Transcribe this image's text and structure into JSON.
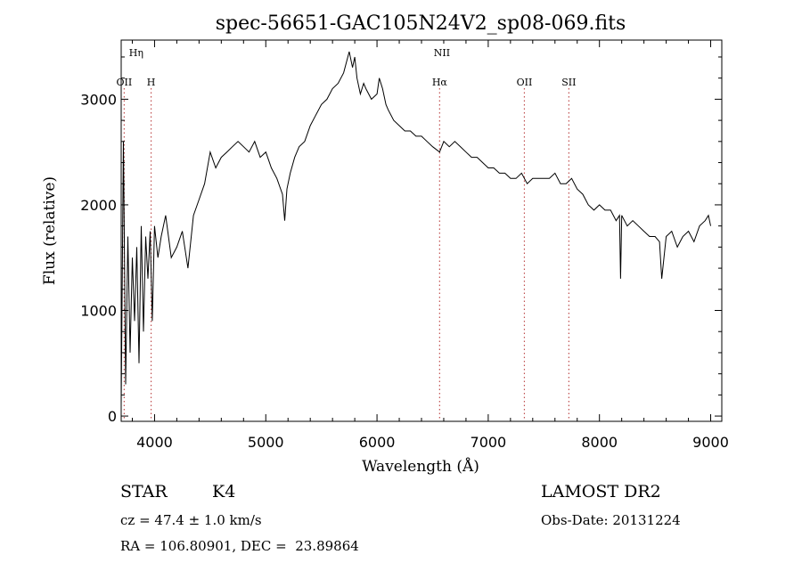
{
  "chart_data": {
    "type": "line",
    "title": "spec-56651-GAC105N24V2_sp08-069.fits",
    "xlabel": "Wavelength (Å)",
    "ylabel": "Flux (relative)",
    "xlim": [
      3700,
      9100
    ],
    "ylim": [
      -50,
      3560
    ],
    "xticks": [
      4000,
      5000,
      6000,
      7000,
      8000,
      9000
    ],
    "yticks": [
      0,
      1000,
      2000,
      3000
    ],
    "grid": false,
    "line_color": "#000000",
    "marker_color": "#c05050",
    "lines": [
      {
        "label": "Hη",
        "wavelength": 3835,
        "row": "top",
        "show_rule": false
      },
      {
        "label": "OII",
        "wavelength": 3727,
        "row": "mid",
        "show_rule": true
      },
      {
        "label": "H",
        "wavelength": 3969,
        "row": "mid",
        "show_rule": true
      },
      {
        "label": "NII",
        "wavelength": 6584,
        "row": "top",
        "show_rule": false
      },
      {
        "label": "Hα",
        "wavelength": 6563,
        "row": "mid",
        "show_rule": true
      },
      {
        "label": "OII",
        "wavelength": 7325,
        "row": "mid",
        "show_rule": true
      },
      {
        "label": "SII",
        "wavelength": 7725,
        "row": "mid",
        "show_rule": true
      }
    ],
    "series": [
      {
        "x": [
          3700,
          3720,
          3740,
          3760,
          3780,
          3800,
          3820,
          3840,
          3860,
          3880,
          3900,
          3920,
          3940,
          3960,
          3980,
          4000,
          4030,
          4060,
          4100,
          4150,
          4200,
          4250,
          4300,
          4350,
          4400,
          4450,
          4500,
          4550,
          4600,
          4650,
          4700,
          4750,
          4800,
          4850,
          4900,
          4950,
          5000,
          5050,
          5100,
          5150,
          5170,
          5190,
          5220,
          5260,
          5300,
          5350,
          5400,
          5450,
          5500,
          5550,
          5600,
          5650,
          5700,
          5750,
          5780,
          5800,
          5820,
          5850,
          5880,
          5900,
          5950,
          6000,
          6020,
          6050,
          6080,
          6100,
          6150,
          6200,
          6250,
          6300,
          6350,
          6400,
          6450,
          6500,
          6563,
          6600,
          6650,
          6700,
          6750,
          6800,
          6850,
          6900,
          6950,
          7000,
          7050,
          7100,
          7150,
          7200,
          7250,
          7300,
          7350,
          7400,
          7450,
          7500,
          7550,
          7600,
          7650,
          7700,
          7750,
          7800,
          7850,
          7900,
          7950,
          8000,
          8050,
          8100,
          8150,
          8180,
          8190,
          8200,
          8250,
          8300,
          8350,
          8400,
          8450,
          8500,
          8540,
          8560,
          8600,
          8650,
          8700,
          8750,
          8800,
          8850,
          8900,
          8950,
          8980,
          9000
        ],
        "y": [
          100,
          2600,
          300,
          1700,
          600,
          1500,
          900,
          1600,
          500,
          1800,
          800,
          1700,
          1300,
          1750,
          900,
          1800,
          1500,
          1700,
          1900,
          1500,
          1600,
          1750,
          1400,
          1900,
          2050,
          2200,
          2500,
          2350,
          2450,
          2500,
          2550,
          2600,
          2550,
          2500,
          2600,
          2450,
          2500,
          2350,
          2250,
          2100,
          1850,
          2150,
          2300,
          2450,
          2550,
          2600,
          2750,
          2850,
          2950,
          3000,
          3100,
          3150,
          3250,
          3450,
          3300,
          3400,
          3200,
          3050,
          3150,
          3100,
          3000,
          3050,
          3200,
          3100,
          2950,
          2900,
          2800,
          2750,
          2700,
          2700,
          2650,
          2650,
          2600,
          2550,
          2500,
          2600,
          2550,
          2600,
          2550,
          2500,
          2450,
          2450,
          2400,
          2350,
          2350,
          2300,
          2300,
          2250,
          2250,
          2300,
          2200,
          2250,
          2250,
          2250,
          2250,
          2300,
          2200,
          2200,
          2250,
          2150,
          2100,
          2000,
          1950,
          2000,
          1950,
          1950,
          1850,
          1900,
          1300,
          1900,
          1800,
          1850,
          1800,
          1750,
          1700,
          1700,
          1650,
          1300,
          1700,
          1750,
          1600,
          1700,
          1750,
          1650,
          1800,
          1850,
          1900,
          1800
        ]
      }
    ]
  },
  "footer": {
    "object_class": "STAR",
    "subclass": "K4",
    "survey": "LAMOST DR2",
    "redshift": "cz = 47.4 ± 1.0 km/s",
    "obs_date": "Obs-Date: 20131224",
    "coords": "RA = 106.80901, DEC =  23.89864"
  }
}
